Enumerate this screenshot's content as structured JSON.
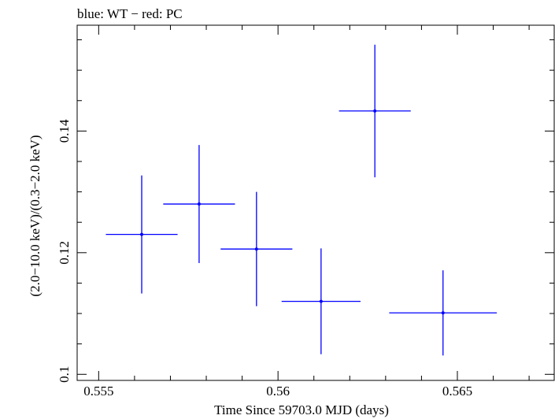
{
  "chart_data": {
    "type": "scatter",
    "title": "blue: WT − red: PC",
    "xlabel": "Time Since 59703.0 MJD (days)",
    "ylabel": "(2.0−10.0 keV)/(0.3−2.0 keV)",
    "xlim": [
      0.5544,
      0.5677
    ],
    "ylim": [
      0.099,
      0.1574
    ],
    "x_ticks": [
      {
        "value": 0.555,
        "label": "0.555"
      },
      {
        "value": 0.56,
        "label": "0.56"
      },
      {
        "value": 0.565,
        "label": "0.565"
      }
    ],
    "y_ticks": [
      {
        "value": 0.1,
        "label": "0.1"
      },
      {
        "value": 0.12,
        "label": "0.12"
      },
      {
        "value": 0.14,
        "label": "0.14"
      }
    ],
    "series": [
      {
        "color": "#0000ff",
        "points": [
          {
            "x": 0.5562,
            "xerr": 0.001,
            "y": 0.123,
            "yerr": 0.0097
          },
          {
            "x": 0.5578,
            "xerr": 0.001,
            "y": 0.128,
            "yerr": 0.0097
          },
          {
            "x": 0.5594,
            "xerr": 0.001,
            "y": 0.1206,
            "yerr": 0.0094
          },
          {
            "x": 0.5612,
            "xerr": 0.0011,
            "y": 0.112,
            "yerr": 0.0087
          },
          {
            "x": 0.5627,
            "xerr": 0.001,
            "y": 0.1433,
            "yerr": 0.0109
          },
          {
            "x": 0.5646,
            "xerr": 0.0015,
            "y": 0.1101,
            "yerr": 0.007
          }
        ]
      }
    ],
    "grid": false
  }
}
